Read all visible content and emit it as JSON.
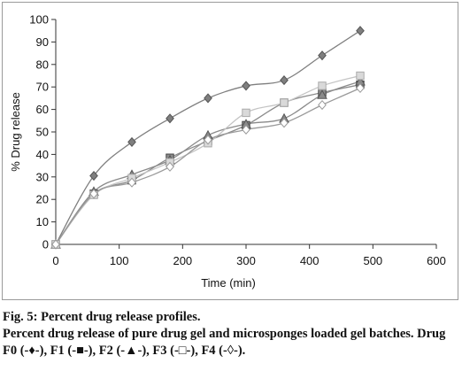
{
  "caption": {
    "title": "Fig. 5: Percent drug release profiles.",
    "text": "Percent drug release of pure drug gel and microsponges loaded gel batches. Drug F0 (-♦-), F1 (-■-), F2 (-▲-), F3 (-□-), F4 (-◊-)."
  },
  "chart_data": {
    "type": "line",
    "xlabel": "Time (min)",
    "ylabel": "% Drug release",
    "xlim": [
      0,
      600
    ],
    "ylim": [
      0,
      100
    ],
    "xticks": [
      0,
      100,
      200,
      300,
      400,
      500,
      600
    ],
    "yticks": [
      0,
      10,
      20,
      30,
      40,
      50,
      60,
      70,
      80,
      90,
      100
    ],
    "grid": false,
    "x": [
      0,
      60,
      120,
      180,
      240,
      300,
      360,
      420,
      480
    ],
    "series": [
      {
        "name": "F0",
        "marker": "diamond-filled",
        "color": "#7f7f7f",
        "values": [
          0,
          30.5,
          45.5,
          56,
          65,
          70.5,
          73,
          84,
          95
        ]
      },
      {
        "name": "F1",
        "marker": "square-filled",
        "color": "#8c8c8c",
        "values": [
          0,
          22.5,
          28.5,
          38.5,
          46,
          53,
          63,
          67.5,
          71
        ]
      },
      {
        "name": "F2",
        "marker": "triangle-filled",
        "color": "#8a8a8a",
        "values": [
          0,
          23.5,
          31,
          37.5,
          48.5,
          53.5,
          56,
          66.5,
          72.5
        ]
      },
      {
        "name": "F3",
        "marker": "square-open",
        "color": "#c4c4c4",
        "values": [
          0,
          22,
          29.5,
          36.5,
          45,
          58.5,
          63,
          70.5,
          75
        ]
      },
      {
        "name": "F4",
        "marker": "diamond-open",
        "color": "#9a9a9a",
        "values": [
          0,
          22.5,
          27.5,
          34.5,
          46.5,
          51,
          54,
          62,
          69.5
        ]
      }
    ]
  }
}
